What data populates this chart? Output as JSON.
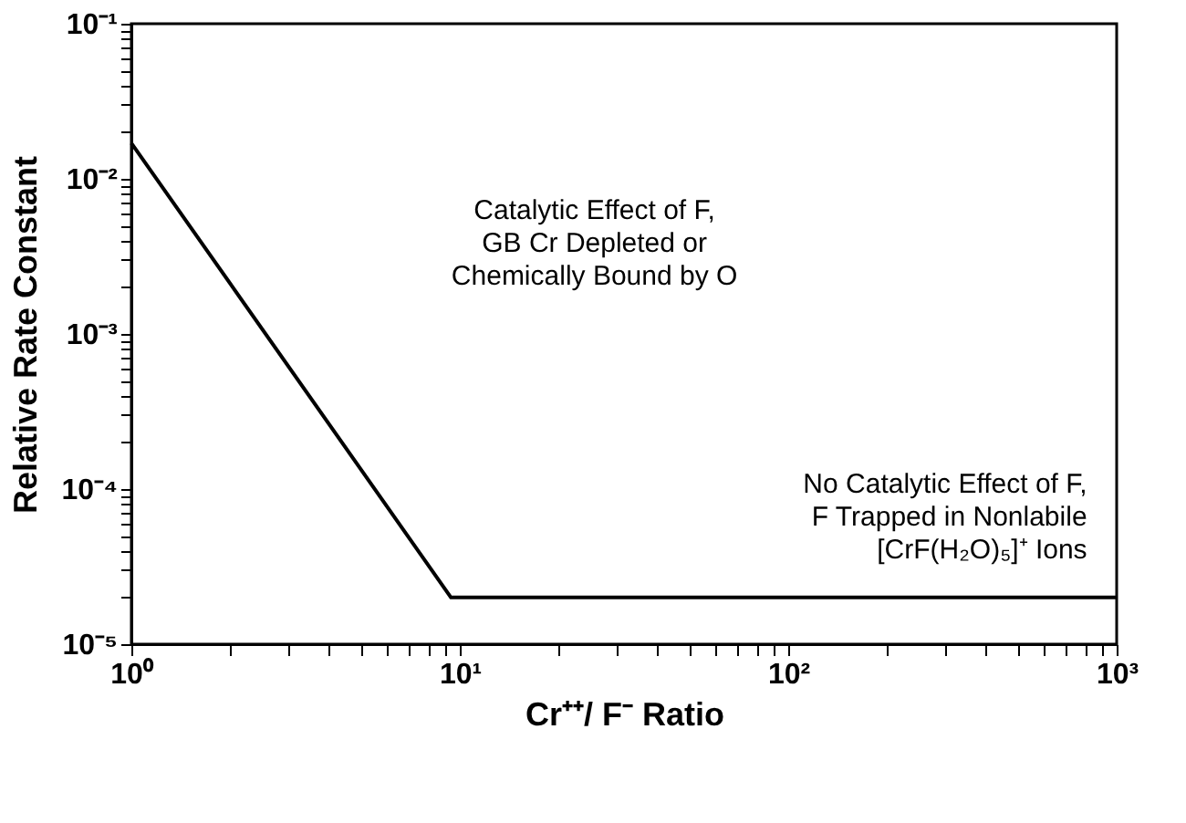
{
  "chart_data": {
    "type": "line",
    "xlabel": "Cr⁺⁺/ F⁻ Ratio",
    "ylabel": "Relative Rate Constant",
    "x": [
      1,
      9.4,
      1000
    ],
    "series": [
      {
        "color": "#000000",
        "values": [
          0.017,
          2e-05,
          2e-05
        ]
      }
    ],
    "log": "xy",
    "xlim": [
      1,
      1000
    ],
    "ylim": [
      1e-05,
      0.1
    ],
    "xticks": [
      {
        "value": 1,
        "label": "10⁰"
      },
      {
        "value": 2,
        "label": null
      },
      {
        "value": 3,
        "label": null
      },
      {
        "value": 4,
        "label": null
      },
      {
        "value": 5,
        "label": null
      },
      {
        "value": 6,
        "label": null
      },
      {
        "value": 7,
        "label": null
      },
      {
        "value": 8,
        "label": null
      },
      {
        "value": 9,
        "label": null
      },
      {
        "value": 10,
        "label": "10¹"
      },
      {
        "value": 20,
        "label": null
      },
      {
        "value": 30,
        "label": null
      },
      {
        "value": 40,
        "label": null
      },
      {
        "value": 50,
        "label": null
      },
      {
        "value": 60,
        "label": null
      },
      {
        "value": 70,
        "label": null
      },
      {
        "value": 80,
        "label": null
      },
      {
        "value": 90,
        "label": null
      },
      {
        "value": 100,
        "label": "10²"
      },
      {
        "value": 200,
        "label": null
      },
      {
        "value": 300,
        "label": null
      },
      {
        "value": 400,
        "label": null
      },
      {
        "value": 500,
        "label": null
      },
      {
        "value": 600,
        "label": null
      },
      {
        "value": 700,
        "label": null
      },
      {
        "value": 800,
        "label": null
      },
      {
        "value": 900,
        "label": null
      },
      {
        "value": 1000,
        "label": "10³"
      }
    ],
    "yticks": [
      {
        "value": 1e-05,
        "label": "10⁻⁵"
      },
      {
        "value": 2e-05,
        "label": null
      },
      {
        "value": 3e-05,
        "label": null
      },
      {
        "value": 4e-05,
        "label": null
      },
      {
        "value": 5e-05,
        "label": null
      },
      {
        "value": 6e-05,
        "label": null
      },
      {
        "value": 7e-05,
        "label": null
      },
      {
        "value": 8e-05,
        "label": null
      },
      {
        "value": 9e-05,
        "label": null
      },
      {
        "value": 0.0001,
        "label": "10⁻⁴"
      },
      {
        "value": 0.0002,
        "label": null
      },
      {
        "value": 0.0003,
        "label": null
      },
      {
        "value": 0.0004,
        "label": null
      },
      {
        "value": 0.0005,
        "label": null
      },
      {
        "value": 0.0006,
        "label": null
      },
      {
        "value": 0.0007,
        "label": null
      },
      {
        "value": 0.0008,
        "label": null
      },
      {
        "value": 0.0009,
        "label": null
      },
      {
        "value": 0.001,
        "label": "10⁻³"
      },
      {
        "value": 0.002,
        "label": null
      },
      {
        "value": 0.003,
        "label": null
      },
      {
        "value": 0.004,
        "label": null
      },
      {
        "value": 0.005,
        "label": null
      },
      {
        "value": 0.006,
        "label": null
      },
      {
        "value": 0.007,
        "label": null
      },
      {
        "value": 0.008,
        "label": null
      },
      {
        "value": 0.009,
        "label": null
      },
      {
        "value": 0.01,
        "label": "10⁻²"
      },
      {
        "value": 0.02,
        "label": null
      },
      {
        "value": 0.03,
        "label": null
      },
      {
        "value": 0.04,
        "label": null
      },
      {
        "value": 0.05,
        "label": null
      },
      {
        "value": 0.06,
        "label": null
      },
      {
        "value": 0.07,
        "label": null
      },
      {
        "value": 0.08,
        "label": null
      },
      {
        "value": 0.09,
        "label": null
      },
      {
        "value": 0.1,
        "label": "10⁻¹"
      }
    ],
    "grid": false,
    "marker": "none",
    "line_style": "solid",
    "annotations": [
      "Catalytic Effect of F,\nGB Cr Depleted or\nChemically Bound by O",
      "No Catalytic Effect of F,\nF Trapped in Nonlabile\n[CrF(H₂O)₅]⁺ Ions"
    ]
  }
}
